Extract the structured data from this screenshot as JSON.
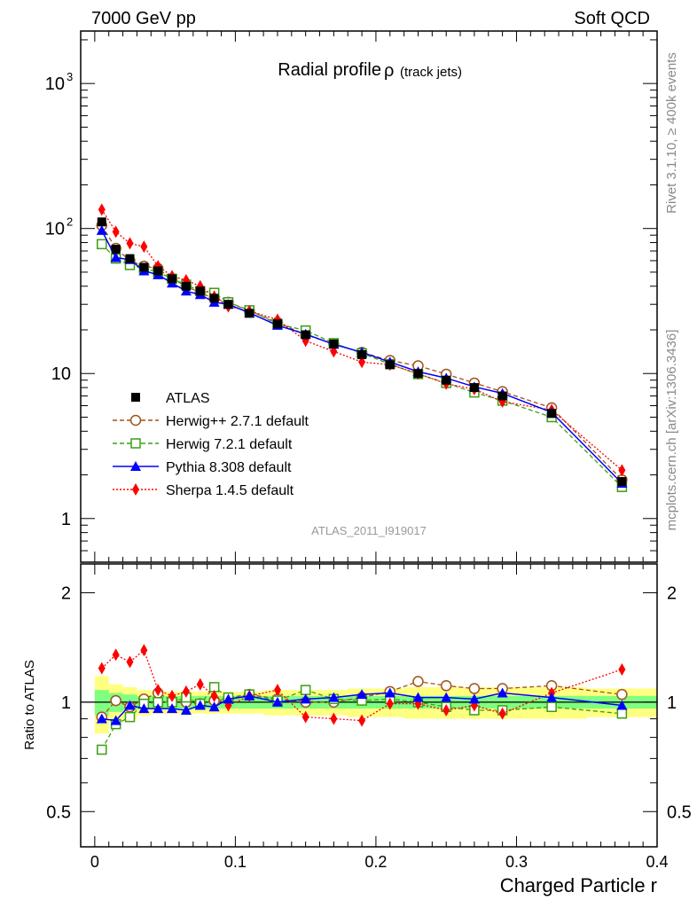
{
  "header": {
    "left_label": "7000 GeV pp",
    "right_label": "Soft QCD",
    "side_label_top": "Rivet 3.1.10, ≥ 400k events",
    "side_label_bottom": "mcplots.cern.ch [arXiv:1306.3436]"
  },
  "colors": {
    "atlas": "#000000",
    "herwigpp": "#a0521e",
    "herwig7": "#3c9e14",
    "pythia": "#0000ff",
    "sherpa": "#ff0000",
    "band_inner": "#80ff80",
    "band_outer": "#ffff80"
  },
  "chart_data": [
    {
      "type": "scatter",
      "title_main": "Radial profile",
      "title_symbol": "ρ",
      "title_sub": "(track jets)",
      "analysis_id": "ATLAS_2011_I919017",
      "yscale": "log",
      "ylim": [
        0.5,
        2300
      ],
      "xlim": [
        -0.01,
        0.4
      ],
      "ytick_labels": [
        {
          "value": 1,
          "label": "1"
        },
        {
          "value": 10,
          "label": "10"
        },
        {
          "value": 100,
          "label": "10",
          "exp": "2"
        },
        {
          "value": 1000,
          "label": "10",
          "exp": "3"
        }
      ],
      "legend_position": "center-left",
      "x": [
        0.005,
        0.015,
        0.025,
        0.035,
        0.045,
        0.055,
        0.065,
        0.075,
        0.085,
        0.095,
        0.11,
        0.13,
        0.15,
        0.17,
        0.19,
        0.21,
        0.23,
        0.25,
        0.27,
        0.29,
        0.325,
        0.375
      ],
      "series": [
        {
          "name": "ATLAS",
          "key": "atlas",
          "marker": "square-filled",
          "line": "none",
          "values": [
            111,
            72,
            62,
            54,
            51,
            45,
            40,
            37,
            33,
            30,
            26,
            22,
            18.5,
            16,
            13.5,
            11.5,
            10,
            9,
            8,
            7,
            5.3,
            1.8
          ]
        },
        {
          "name": "Herwig++ 2.7.1 default",
          "key": "herwigpp",
          "marker": "circle-open",
          "line": "dashed",
          "values": [
            105,
            73,
            60,
            55,
            53,
            45,
            40,
            36,
            33,
            31,
            27,
            22.5,
            18.5,
            16,
            14,
            12.3,
            11.3,
            9.9,
            8.6,
            7.5,
            5.8,
            1.85
          ]
        },
        {
          "name": "Herwig 7.2.1 default",
          "key": "herwig7",
          "marker": "square-open",
          "line": "dashed",
          "values": [
            78,
            62,
            56,
            53,
            50,
            45,
            41,
            37,
            36,
            31,
            27.3,
            22,
            19.8,
            16.2,
            13.8,
            11.6,
            9.9,
            8.6,
            7.4,
            6.5,
            5,
            1.65
          ]
        },
        {
          "name": "Pythia 8.308 default",
          "key": "pythia",
          "marker": "triangle-filled",
          "line": "solid",
          "values": [
            97,
            63,
            61,
            51,
            48,
            42,
            37,
            35,
            31,
            30,
            26.2,
            21.5,
            18.7,
            15.9,
            14,
            12,
            10.3,
            9.3,
            8.1,
            7.3,
            5.4,
            1.75
          ]
        },
        {
          "name": "Sherpa 1.4.5 default",
          "key": "sherpa",
          "marker": "diamond-filled",
          "line": "dotted",
          "values": [
            135,
            95,
            79,
            75,
            55,
            47,
            44,
            40,
            34,
            29,
            27,
            23.5,
            16.8,
            14.2,
            12,
            11.5,
            10,
            8.5,
            7.8,
            6.4,
            5.6,
            2.15
          ]
        }
      ]
    },
    {
      "type": "scatter",
      "ylabel": "Ratio to ATLAS",
      "xlabel": "Charged Particle r",
      "yscale": "log",
      "ylim": [
        0.4,
        2.4
      ],
      "xlim": [
        -0.01,
        0.4
      ],
      "ytick_labels": [
        {
          "value": 0.5,
          "label": "0.5"
        },
        {
          "value": 1,
          "label": "1"
        },
        {
          "value": 2,
          "label": "2"
        }
      ],
      "xtick_labels": [
        {
          "value": 0,
          "label": "0"
        },
        {
          "value": 0.1,
          "label": "0.1"
        },
        {
          "value": 0.2,
          "label": "0.2"
        },
        {
          "value": 0.3,
          "label": "0.3"
        },
        {
          "value": 0.4,
          "label": "0.4"
        }
      ],
      "band_inner_halfwidth": [
        0.08,
        0.06,
        0.05,
        0.04,
        0.04,
        0.04,
        0.04,
        0.04,
        0.04,
        0.04,
        0.04,
        0.04,
        0.04,
        0.04,
        0.04,
        0.04,
        0.04,
        0.04,
        0.04,
        0.04,
        0.04,
        0.04
      ],
      "band_outer_halfwidth": [
        0.18,
        0.12,
        0.1,
        0.08,
        0.07,
        0.07,
        0.07,
        0.07,
        0.07,
        0.07,
        0.07,
        0.08,
        0.08,
        0.08,
        0.09,
        0.09,
        0.1,
        0.1,
        0.1,
        0.1,
        0.1,
        0.09
      ],
      "series": [
        {
          "name": "Herwig++ 2.7.1 default",
          "key": "herwigpp",
          "values": [
            0.91,
            1.01,
            0.97,
            1.02,
            1.06,
            1.01,
            1.0,
            0.99,
            1.01,
            1.02,
            1.05,
            1.02,
            1.0,
            1.0,
            1.03,
            1.07,
            1.14,
            1.11,
            1.09,
            1.09,
            1.11,
            1.05
          ]
        },
        {
          "name": "Herwig 7.2.1 default",
          "key": "herwig7",
          "values": [
            0.74,
            0.87,
            0.91,
            0.99,
            1.0,
            1.0,
            1.03,
            0.99,
            1.1,
            1.03,
            1.05,
            1.01,
            1.08,
            1.02,
            1.01,
            1.02,
            1.0,
            0.97,
            0.95,
            0.95,
            0.97,
            0.93
          ]
        },
        {
          "name": "Pythia 8.308 default",
          "key": "pythia",
          "values": [
            0.9,
            0.89,
            0.98,
            0.96,
            0.96,
            0.96,
            0.95,
            0.98,
            0.97,
            1.02,
            1.04,
            1.0,
            1.02,
            1.03,
            1.05,
            1.06,
            1.03,
            1.03,
            1.02,
            1.06,
            1.03,
            0.98
          ]
        },
        {
          "name": "Sherpa 1.4.5 default",
          "key": "sherpa",
          "values": [
            1.24,
            1.35,
            1.29,
            1.39,
            1.08,
            1.04,
            1.07,
            1.12,
            1.04,
            0.98,
            1.04,
            1.08,
            0.91,
            0.9,
            0.89,
            0.99,
            0.99,
            0.95,
            0.98,
            0.93,
            1.06,
            1.23
          ]
        }
      ]
    }
  ]
}
